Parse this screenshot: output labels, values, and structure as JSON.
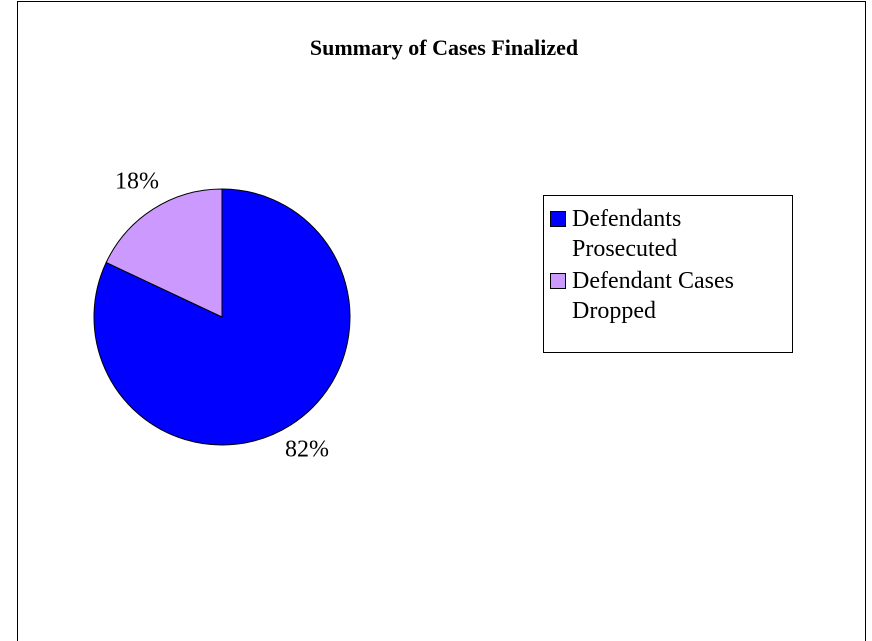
{
  "chart_data": {
    "type": "pie",
    "title": "Summary of Cases Finalized",
    "categories": [
      "Defendants Prosecuted",
      "Defendant Cases Dropped"
    ],
    "values": [
      82,
      18
    ],
    "value_labels": [
      "82%",
      "18%"
    ],
    "colors": [
      "#0000ff",
      "#cc99ff"
    ],
    "legend": "right"
  }
}
